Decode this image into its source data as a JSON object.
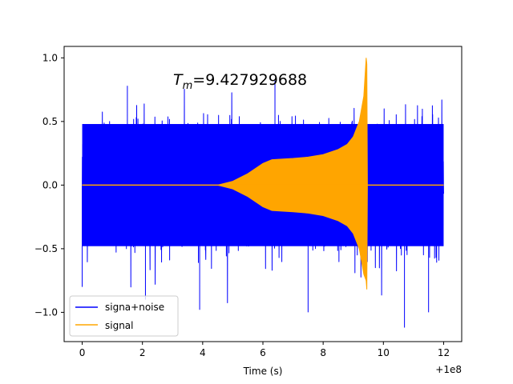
{
  "chart_data": {
    "type": "line",
    "title": "",
    "xlabel": "Time (s)",
    "ylabel": "",
    "x_offset_label": "+1e8",
    "xlim": [
      -0.6,
      12.6
    ],
    "ylim": [
      -1.23,
      1.09
    ],
    "xticks": [
      0,
      2,
      4,
      6,
      8,
      10,
      12
    ],
    "xtick_labels": [
      "0",
      "2",
      "4",
      "6",
      "8",
      "10",
      "12"
    ],
    "yticks": [
      -1.0,
      -0.5,
      0.0,
      0.5,
      1.0
    ],
    "ytick_labels": [
      "−1.0",
      "−0.5",
      "0.0",
      "0.5",
      "1.0"
    ],
    "grid": false,
    "legend_position": "lower left",
    "annotation": {
      "base": "T",
      "subscript": "m",
      "value": "=9.427929688"
    },
    "series": [
      {
        "name": "signa+noise",
        "color": "#0000ff",
        "description": "dense noise over full range",
        "x_range": [
          0,
          12
        ],
        "typical_amplitude": 0.5,
        "peak_extremes": [
          {
            "x": 0.0,
            "y": -0.8
          },
          {
            "x": 2.1,
            "y": -0.9
          },
          {
            "x": 3.9,
            "y": -0.98
          },
          {
            "x": 7.5,
            "y": -1.0
          },
          {
            "x": 10.7,
            "y": -1.12
          },
          {
            "x": 9.4,
            "y": 0.84
          },
          {
            "x": 11.5,
            "y": -1.0
          },
          {
            "x": 1.5,
            "y": 0.78
          },
          {
            "x": 6.4,
            "y": 0.82
          }
        ]
      },
      {
        "name": "signal",
        "color": "#ffa500",
        "description": "chirp signal merging at Tm",
        "envelope": [
          {
            "x": 0.0,
            "y": 0.0
          },
          {
            "x": 4.5,
            "y": 0.0
          },
          {
            "x": 5.0,
            "y": 0.03
          },
          {
            "x": 5.5,
            "y": 0.09
          },
          {
            "x": 6.0,
            "y": 0.17
          },
          {
            "x": 6.3,
            "y": 0.2
          },
          {
            "x": 7.0,
            "y": 0.21
          },
          {
            "x": 7.5,
            "y": 0.22
          },
          {
            "x": 8.0,
            "y": 0.24
          },
          {
            "x": 8.5,
            "y": 0.28
          },
          {
            "x": 8.8,
            "y": 0.32
          },
          {
            "x": 9.0,
            "y": 0.38
          },
          {
            "x": 9.2,
            "y": 0.5
          },
          {
            "x": 9.35,
            "y": 0.7
          },
          {
            "x": 9.4279,
            "y": 1.0
          },
          {
            "x": 9.43,
            "y": 0.0
          },
          {
            "x": 12.0,
            "y": 0.0
          }
        ],
        "bottom_extreme": {
          "x": 9.45,
          "y": -0.82
        }
      }
    ]
  }
}
